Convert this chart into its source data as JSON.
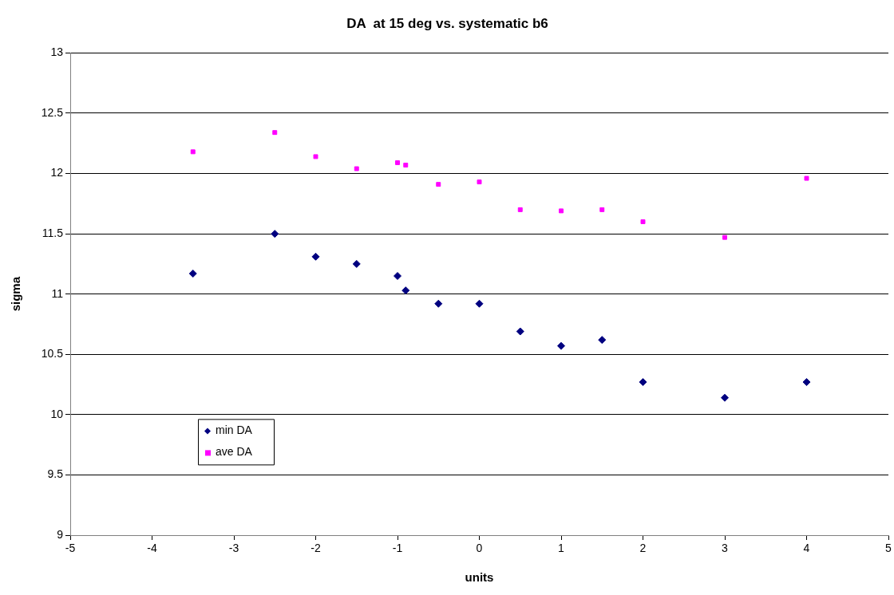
{
  "chart_data": {
    "type": "scatter",
    "title": "DA  at 15 deg vs. systematic b6",
    "xlabel": "units",
    "ylabel": "sigma",
    "x": [
      -3.5,
      -2.5,
      -2,
      -1.5,
      -1,
      -0.9,
      -0.5,
      0,
      0.5,
      1,
      1.5,
      2,
      3,
      4
    ],
    "series": [
      {
        "name": "min DA",
        "color": "#000080",
        "marker": "diamond",
        "values": [
          11.17,
          11.5,
          11.31,
          11.25,
          11.15,
          11.03,
          10.92,
          10.92,
          10.69,
          10.57,
          10.62,
          10.27,
          10.14,
          10.27
        ]
      },
      {
        "name": "ave DA",
        "color": "#ff00ff",
        "marker": "square",
        "values": [
          12.18,
          12.34,
          12.14,
          12.04,
          12.09,
          12.07,
          11.91,
          11.93,
          11.7,
          11.69,
          11.7,
          11.6,
          11.47,
          11.96
        ]
      }
    ],
    "xlim": [
      -5,
      5
    ],
    "xticks": [
      -5,
      -4,
      -3,
      -2,
      -1,
      0,
      1,
      2,
      3,
      4,
      5
    ],
    "ylim": [
      9,
      13
    ],
    "yticks": [
      9,
      9.5,
      10,
      10.5,
      11,
      11.5,
      12,
      12.5,
      13
    ],
    "grid": "y",
    "legend": "bottom left"
  }
}
